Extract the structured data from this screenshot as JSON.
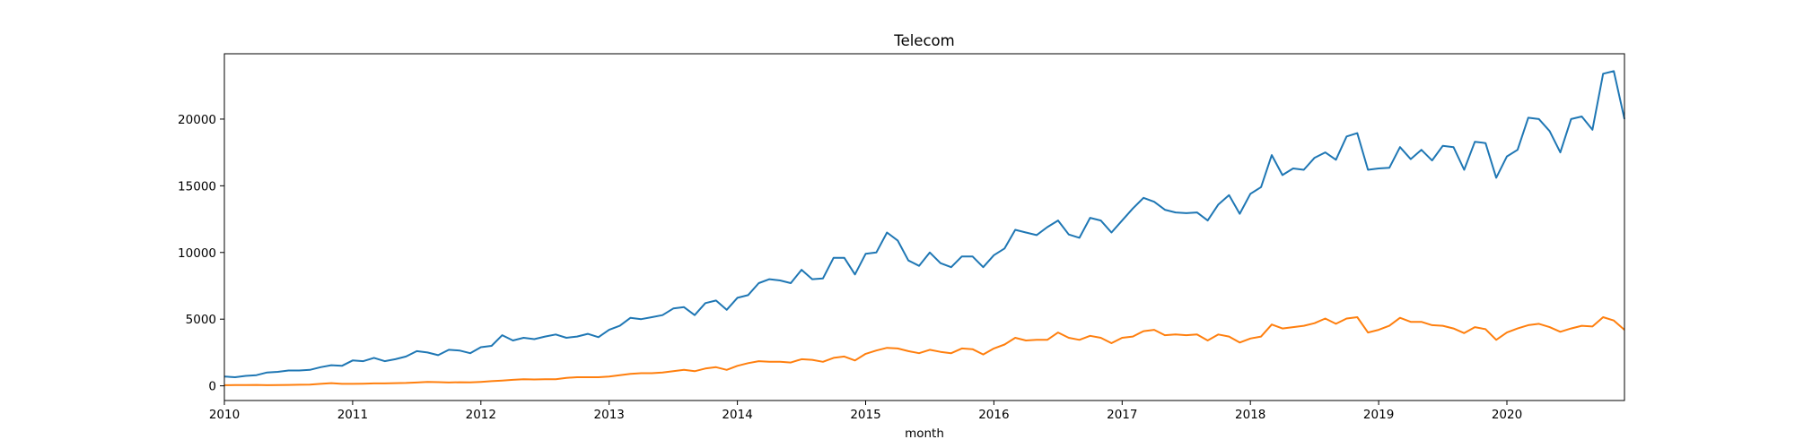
{
  "chart_data": {
    "type": "line",
    "title": "Telecom",
    "xlabel": "month",
    "ylabel": "",
    "x_start": "2010-01",
    "x_end": "2020-12",
    "xlim": [
      "2010-01",
      "2020-12"
    ],
    "ylim": [
      -1100,
      24900
    ],
    "grid": false,
    "legend": "none",
    "x_tick_labels": [
      "2010",
      "2011",
      "2012",
      "2013",
      "2014",
      "2015",
      "2016",
      "2017",
      "2018",
      "2019",
      "2020"
    ],
    "y_ticks": [
      0,
      5000,
      10000,
      15000,
      20000
    ],
    "y_tick_labels": [
      "0",
      "5000",
      "10000",
      "15000",
      "20000"
    ],
    "series": [
      {
        "color": "#1f77b4",
        "values": [
          700,
          650,
          750,
          800,
          1000,
          1050,
          1150,
          1150,
          1200,
          1400,
          1550,
          1500,
          1900,
          1850,
          2100,
          1850,
          2000,
          2200,
          2600,
          2500,
          2300,
          2700,
          2650,
          2450,
          2900,
          3000,
          3800,
          3400,
          3600,
          3500,
          3700,
          3850,
          3600,
          3700,
          3900,
          3650,
          4200,
          4500,
          5100,
          5000,
          5150,
          5300,
          5800,
          5900,
          5300,
          6200,
          6400,
          5700,
          6600,
          6800,
          7700,
          8000,
          7900,
          7700,
          8700,
          8000,
          8050,
          9600,
          9600,
          8350,
          9900,
          10000,
          11500,
          10900,
          9400,
          9000,
          10000,
          9200,
          8900,
          9700,
          9700,
          8900,
          9800,
          10300,
          11700,
          11500,
          11300,
          11900,
          12400,
          11350,
          11100,
          12600,
          12400,
          11500,
          12400,
          13300,
          14100,
          13800,
          13200,
          13000,
          12950,
          13000,
          12400,
          13600,
          14300,
          12900,
          14400,
          14900,
          17300,
          15800,
          16300,
          16200,
          17100,
          17500,
          16950,
          18700,
          18950,
          16200,
          16300,
          16350,
          17900,
          17000,
          17700,
          16900,
          18000,
          17900,
          16200,
          18300,
          18200,
          15600,
          17200,
          17700,
          20100,
          20000,
          19100,
          17500,
          20000,
          20200,
          19200,
          23400,
          23600,
          20000
        ]
      },
      {
        "color": "#ff7f0e",
        "values": [
          50,
          60,
          60,
          70,
          50,
          60,
          70,
          80,
          90,
          150,
          200,
          150,
          150,
          160,
          180,
          180,
          200,
          220,
          250,
          300,
          280,
          250,
          270,
          260,
          300,
          350,
          400,
          450,
          500,
          480,
          500,
          500,
          600,
          650,
          650,
          650,
          700,
          800,
          900,
          950,
          950,
          1000,
          1100,
          1200,
          1100,
          1300,
          1400,
          1200,
          1500,
          1700,
          1850,
          1800,
          1800,
          1750,
          2000,
          1950,
          1800,
          2100,
          2200,
          1900,
          2400,
          2650,
          2850,
          2800,
          2600,
          2450,
          2700,
          2550,
          2450,
          2800,
          2750,
          2350,
          2800,
          3100,
          3600,
          3400,
          3450,
          3450,
          4000,
          3600,
          3450,
          3750,
          3600,
          3200,
          3600,
          3700,
          4100,
          4200,
          3800,
          3850,
          3800,
          3850,
          3400,
          3850,
          3700,
          3250,
          3550,
          3700,
          4600,
          4300,
          4400,
          4500,
          4700,
          5050,
          4650,
          5050,
          5150,
          4000,
          4200,
          4500,
          5100,
          4800,
          4800,
          4550,
          4500,
          4300,
          3950,
          4400,
          4250,
          3450,
          4000,
          4300,
          4550,
          4650,
          4400,
          4050,
          4300,
          4500,
          4450,
          5150,
          4900,
          4200
        ]
      }
    ]
  }
}
